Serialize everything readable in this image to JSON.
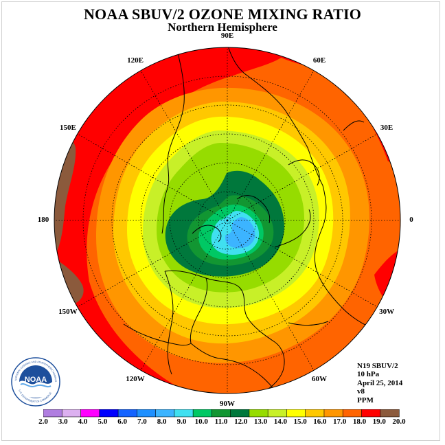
{
  "title": "NOAA SBUV/2 OZONE MIXING RATIO",
  "subtitle": "Northern Hemisphere",
  "longitude_labels": [
    {
      "text": "90E",
      "lon": 90
    },
    {
      "text": "60E",
      "lon": 60
    },
    {
      "text": "30E",
      "lon": 30
    },
    {
      "text": "0",
      "lon": 0
    },
    {
      "text": "30W",
      "lon": -30
    },
    {
      "text": "60W",
      "lon": -60
    },
    {
      "text": "90W",
      "lon": -90
    },
    {
      "text": "120W",
      "lon": -120
    },
    {
      "text": "150W",
      "lon": -150
    },
    {
      "text": "180",
      "lon": 180
    },
    {
      "text": "150E",
      "lon": 150
    },
    {
      "text": "120E",
      "lon": 120
    }
  ],
  "info": {
    "instrument": "N19 SBUV/2",
    "level": "10 hPa",
    "date": "April 25, 2014",
    "version": "v8",
    "units": "PPM"
  },
  "logo": {
    "text": "NOAA",
    "ring_text": "NATIONAL OCEANIC AND ATMOSPHERIC ADMINISTRATION",
    "ring_text_bottom": "U.S. DEPARTMENT OF COMMERCE"
  },
  "colorbar": {
    "ticks": [
      "2.0",
      "3.0",
      "4.0",
      "5.0",
      "6.0",
      "7.0",
      "8.0",
      "9.0",
      "10.0",
      "11.0",
      "12.0",
      "13.0",
      "14.0",
      "15.0",
      "16.0",
      "17.0",
      "18.0",
      "19.0",
      "20.0"
    ],
    "colors": [
      "#b07ee0",
      "#dcb0f0",
      "#ff00ff",
      "#0000ff",
      "#1463ff",
      "#1e90ff",
      "#3cb4ff",
      "#40e0f0",
      "#00c864",
      "#129632",
      "#00783c",
      "#96dc00",
      "#c8f028",
      "#ffff00",
      "#ffc800",
      "#ff9600",
      "#ff6400",
      "#ff0000",
      "#8b5a3c"
    ]
  },
  "map_fields": {
    "contour_levels_ppm": [
      11.0,
      12.0,
      13.0,
      14.0,
      15.0,
      16.0,
      17.0,
      18.0,
      19.0
    ]
  }
}
